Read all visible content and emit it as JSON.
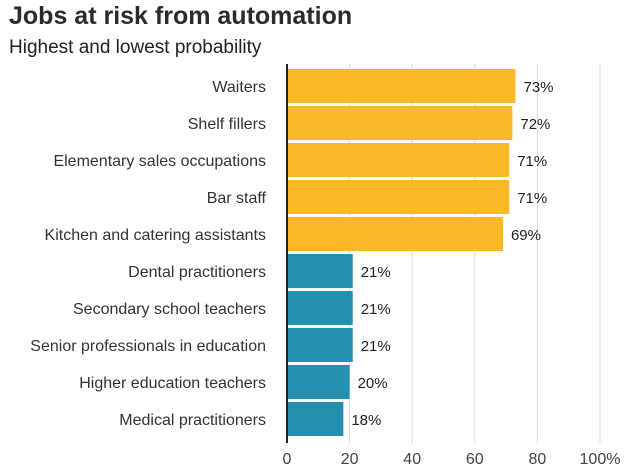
{
  "chart_data": {
    "type": "bar",
    "orientation": "horizontal",
    "title": "Jobs at risk from automation",
    "subtitle": "Highest and lowest probability",
    "categories": [
      "Waiters",
      "Shelf fillers",
      "Elementary sales occupations",
      "Bar staff",
      "Kitchen and catering assistants",
      "Dental practitioners",
      "Secondary school teachers",
      "Senior professionals in education",
      "Higher education teachers",
      "Medical practitioners"
    ],
    "values": [
      73,
      72,
      71,
      71,
      69,
      21,
      21,
      21,
      20,
      18
    ],
    "value_labels": [
      "73%",
      "72%",
      "71%",
      "71%",
      "69%",
      "21%",
      "21%",
      "21%",
      "20%",
      "18%"
    ],
    "bar_colors": [
      "#fbb829",
      "#fbb829",
      "#fbb829",
      "#fbb829",
      "#fbb829",
      "#2390b0",
      "#2390b0",
      "#2390b0",
      "#2390b0",
      "#2390b0"
    ],
    "xlim": [
      0,
      100
    ],
    "xticks": [
      0,
      20,
      40,
      60,
      80,
      100
    ],
    "xtick_labels": [
      "0",
      "20",
      "40",
      "60",
      "80",
      "100%"
    ],
    "xlabel": "",
    "ylabel": "",
    "grid": "vertical",
    "legend": "none",
    "colors": {
      "high": "#fbb829",
      "low": "#2390b0",
      "grid": "#dddddd",
      "axis": "#222222"
    }
  }
}
